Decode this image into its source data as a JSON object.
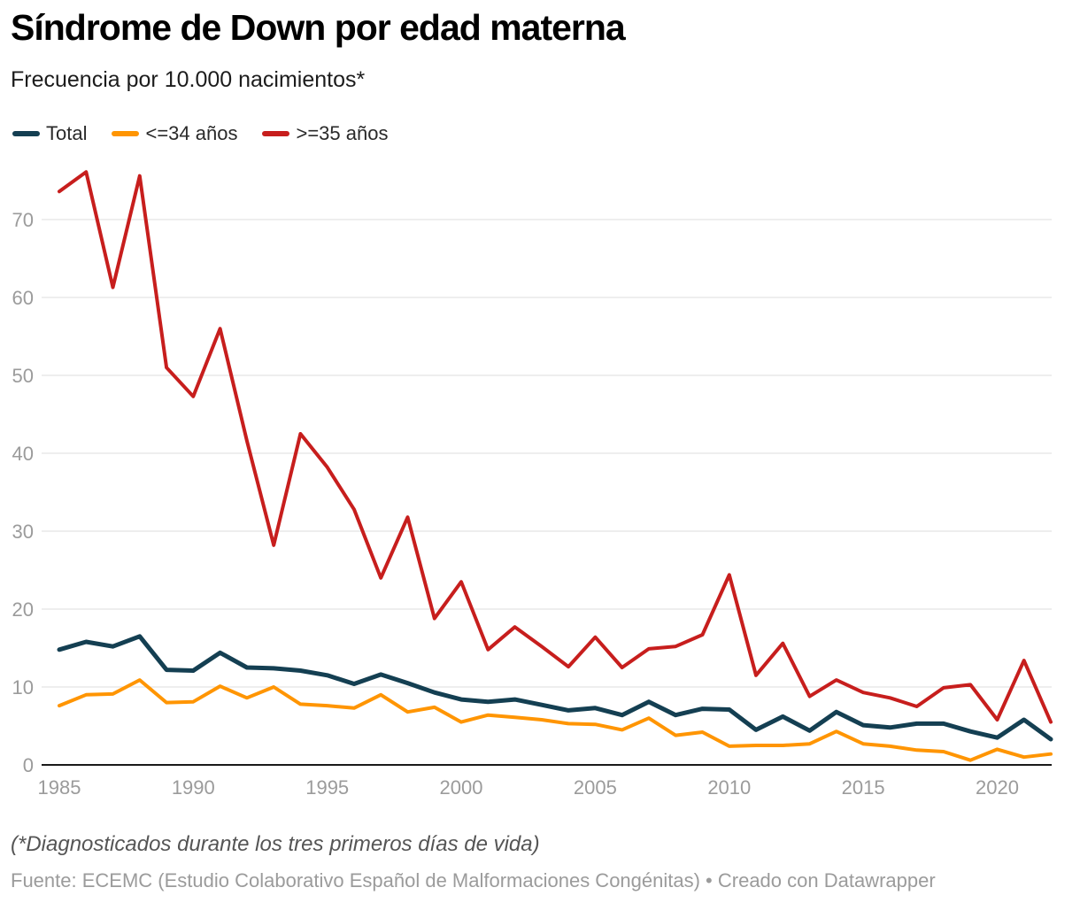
{
  "header": {
    "title": "Síndrome de Down por edad materna",
    "subtitle": "Frecuencia por 10.000 nacimientos*"
  },
  "legend": [
    {
      "label": "Total",
      "color": "#143f52"
    },
    {
      "label": "<=34 años",
      "color": "#ff9502"
    },
    {
      "label": ">=35 años",
      "color": "#c71e1d"
    }
  ],
  "chart_data": {
    "type": "line",
    "title": "Síndrome de Down por edad materna",
    "subtitle": "Frecuencia por 10.000 nacimientos*",
    "xlabel": "",
    "ylabel": "Frecuencia por 10.000 nacimientos",
    "x": [
      1985,
      1986,
      1987,
      1988,
      1989,
      1990,
      1991,
      1992,
      1993,
      1994,
      1995,
      1996,
      1997,
      1998,
      1999,
      2000,
      2001,
      2002,
      2003,
      2004,
      2005,
      2006,
      2007,
      2008,
      2009,
      2010,
      2011,
      2012,
      2013,
      2014,
      2015,
      2016,
      2017,
      2018,
      2019,
      2020,
      2021,
      2022
    ],
    "series": [
      {
        "name": "Total",
        "color": "#143f52",
        "stroke_width": 5,
        "values": [
          14.8,
          15.8,
          15.2,
          16.5,
          12.2,
          12.1,
          14.4,
          12.5,
          12.4,
          12.1,
          11.5,
          10.4,
          11.6,
          10.5,
          9.3,
          8.4,
          8.1,
          8.4,
          7.7,
          7.0,
          7.3,
          6.4,
          8.1,
          6.4,
          7.2,
          7.1,
          4.5,
          6.2,
          4.4,
          6.8,
          5.1,
          4.8,
          5.3,
          5.3,
          4.3,
          3.5,
          5.8,
          3.3
        ]
      },
      {
        "name": "<=34 años",
        "color": "#ff9502",
        "stroke_width": 4,
        "values": [
          7.6,
          9.0,
          9.1,
          10.9,
          8.0,
          8.1,
          10.1,
          8.6,
          10.0,
          7.8,
          7.6,
          7.3,
          9.0,
          6.8,
          7.4,
          5.5,
          6.4,
          6.1,
          5.8,
          5.3,
          5.2,
          4.5,
          6.0,
          3.8,
          4.2,
          2.4,
          2.5,
          2.5,
          2.7,
          4.3,
          2.7,
          2.4,
          1.9,
          1.7,
          0.6,
          2.0,
          1.0,
          1.4
        ]
      },
      {
        "name": ">=35 años",
        "color": "#c71e1d",
        "stroke_width": 4,
        "values": [
          73.6,
          76.1,
          61.3,
          75.6,
          51.0,
          47.3,
          56.0,
          41.6,
          28.2,
          42.5,
          38.2,
          32.8,
          24.0,
          31.8,
          18.8,
          23.5,
          14.8,
          17.7,
          15.2,
          12.6,
          16.4,
          12.5,
          14.9,
          15.2,
          16.7,
          24.4,
          11.5,
          15.6,
          8.8,
          10.9,
          9.3,
          8.6,
          7.5,
          9.9,
          10.3,
          5.8,
          13.4,
          5.5
        ]
      }
    ],
    "y_ticks": [
      0,
      10,
      20,
      30,
      40,
      50,
      60,
      70
    ],
    "x_ticks": [
      1985,
      1990,
      1995,
      2000,
      2005,
      2010,
      2015,
      2020
    ],
    "ylim": [
      0,
      78
    ],
    "xlim": [
      1985,
      2022
    ],
    "grid": true,
    "legend_position": "top",
    "colors": {
      "grid": "#e4e4e4",
      "axis": "#1a1a1a",
      "tick_text": "#9b9b9b"
    }
  },
  "footer": {
    "footnote": "(*Diagnosticados durante los tres primeros días de vida)",
    "source": "Fuente: ECEMC (Estudio Colaborativo Español de Malformaciones Congénitas) • Creado con Datawrapper"
  }
}
